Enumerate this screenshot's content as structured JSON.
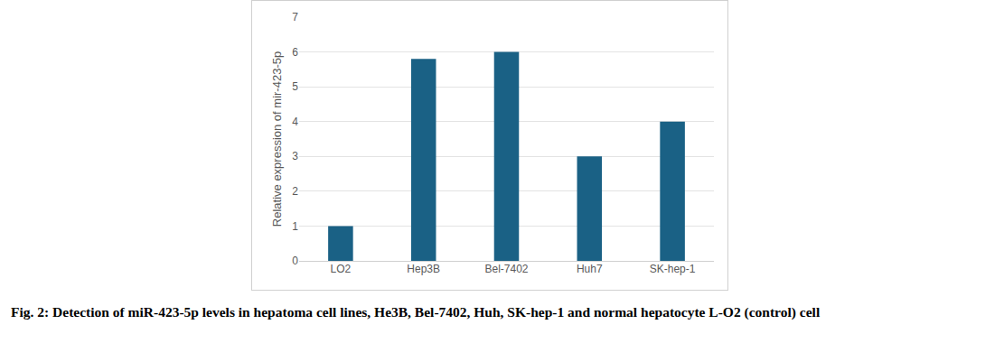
{
  "chart_data": {
    "type": "bar",
    "caption": "Fig. 2: Detection of miR-423-5p levels in hepatoma cell lines, He3B, Bel-7402, Huh, SK-hep-1 and normal hepatocyte L-O2 (control) cell",
    "y_label": "Relative expression of mir-423-5p",
    "categories": [
      "LO2",
      "Hep3B",
      "Bel-7402",
      "Huh7",
      "SK-hep-1"
    ],
    "values": [
      1,
      5.8,
      6,
      3,
      4
    ],
    "color": "#1a6185",
    "ylim": [
      0,
      7
    ],
    "yticks": [
      0,
      1,
      2,
      3,
      4,
      5,
      6,
      7
    ],
    "grid": true
  }
}
